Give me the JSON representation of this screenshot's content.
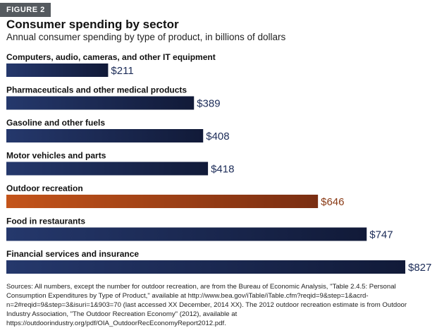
{
  "figure": {
    "label": "FIGURE 2",
    "title": "Consumer spending by sector",
    "subtitle": "Annual consumer spending by type of product, in billions of dollars",
    "sources": "Sources: All numbers, except the number for outdoor recreation, are from the Bureau of Economic Analysis, \"Table 2.4.5: Personal Consumption Expenditures by Type of Product,\" available at http://www.bea.gov/iTable/iTable.cfm?reqid=9&step=1&acrd-n=2#reqid=9&step=3&isuri=1&903=70 (last accessed XX December, 2014 XX). The 2012 outdoor recreation estimate is from Outdoor Industry Association, \"The Outdoor Recreation Economy\" (2012), available at https://outdoorindustry.org/pdf/OIA_OutdoorRecEconomyReport2012.pdf."
  },
  "colors": {
    "bar_default": "#1c2c58",
    "bar_highlight": "#a54518",
    "value_default": "#1c2c58",
    "value_highlight": "#8a3a15"
  },
  "chart_data": {
    "type": "bar",
    "orientation": "horizontal",
    "value_prefix": "$",
    "xlim": [
      0,
      850
    ],
    "highlight_category": "Outdoor recreation",
    "grid": false,
    "categories": [
      "Computers, audio, cameras, and other IT equipment",
      "Pharmaceuticals and other medical products",
      "Gasoline and other fuels",
      "Motor vehicles and parts",
      "Outdoor recreation",
      "Food in restaurants",
      "Financial services and insurance"
    ],
    "values": [
      211,
      389,
      408,
      418,
      646,
      747,
      827
    ],
    "value_labels": [
      "$211",
      "$389",
      "$408",
      "$418",
      "$646",
      "$747",
      "$827"
    ]
  }
}
